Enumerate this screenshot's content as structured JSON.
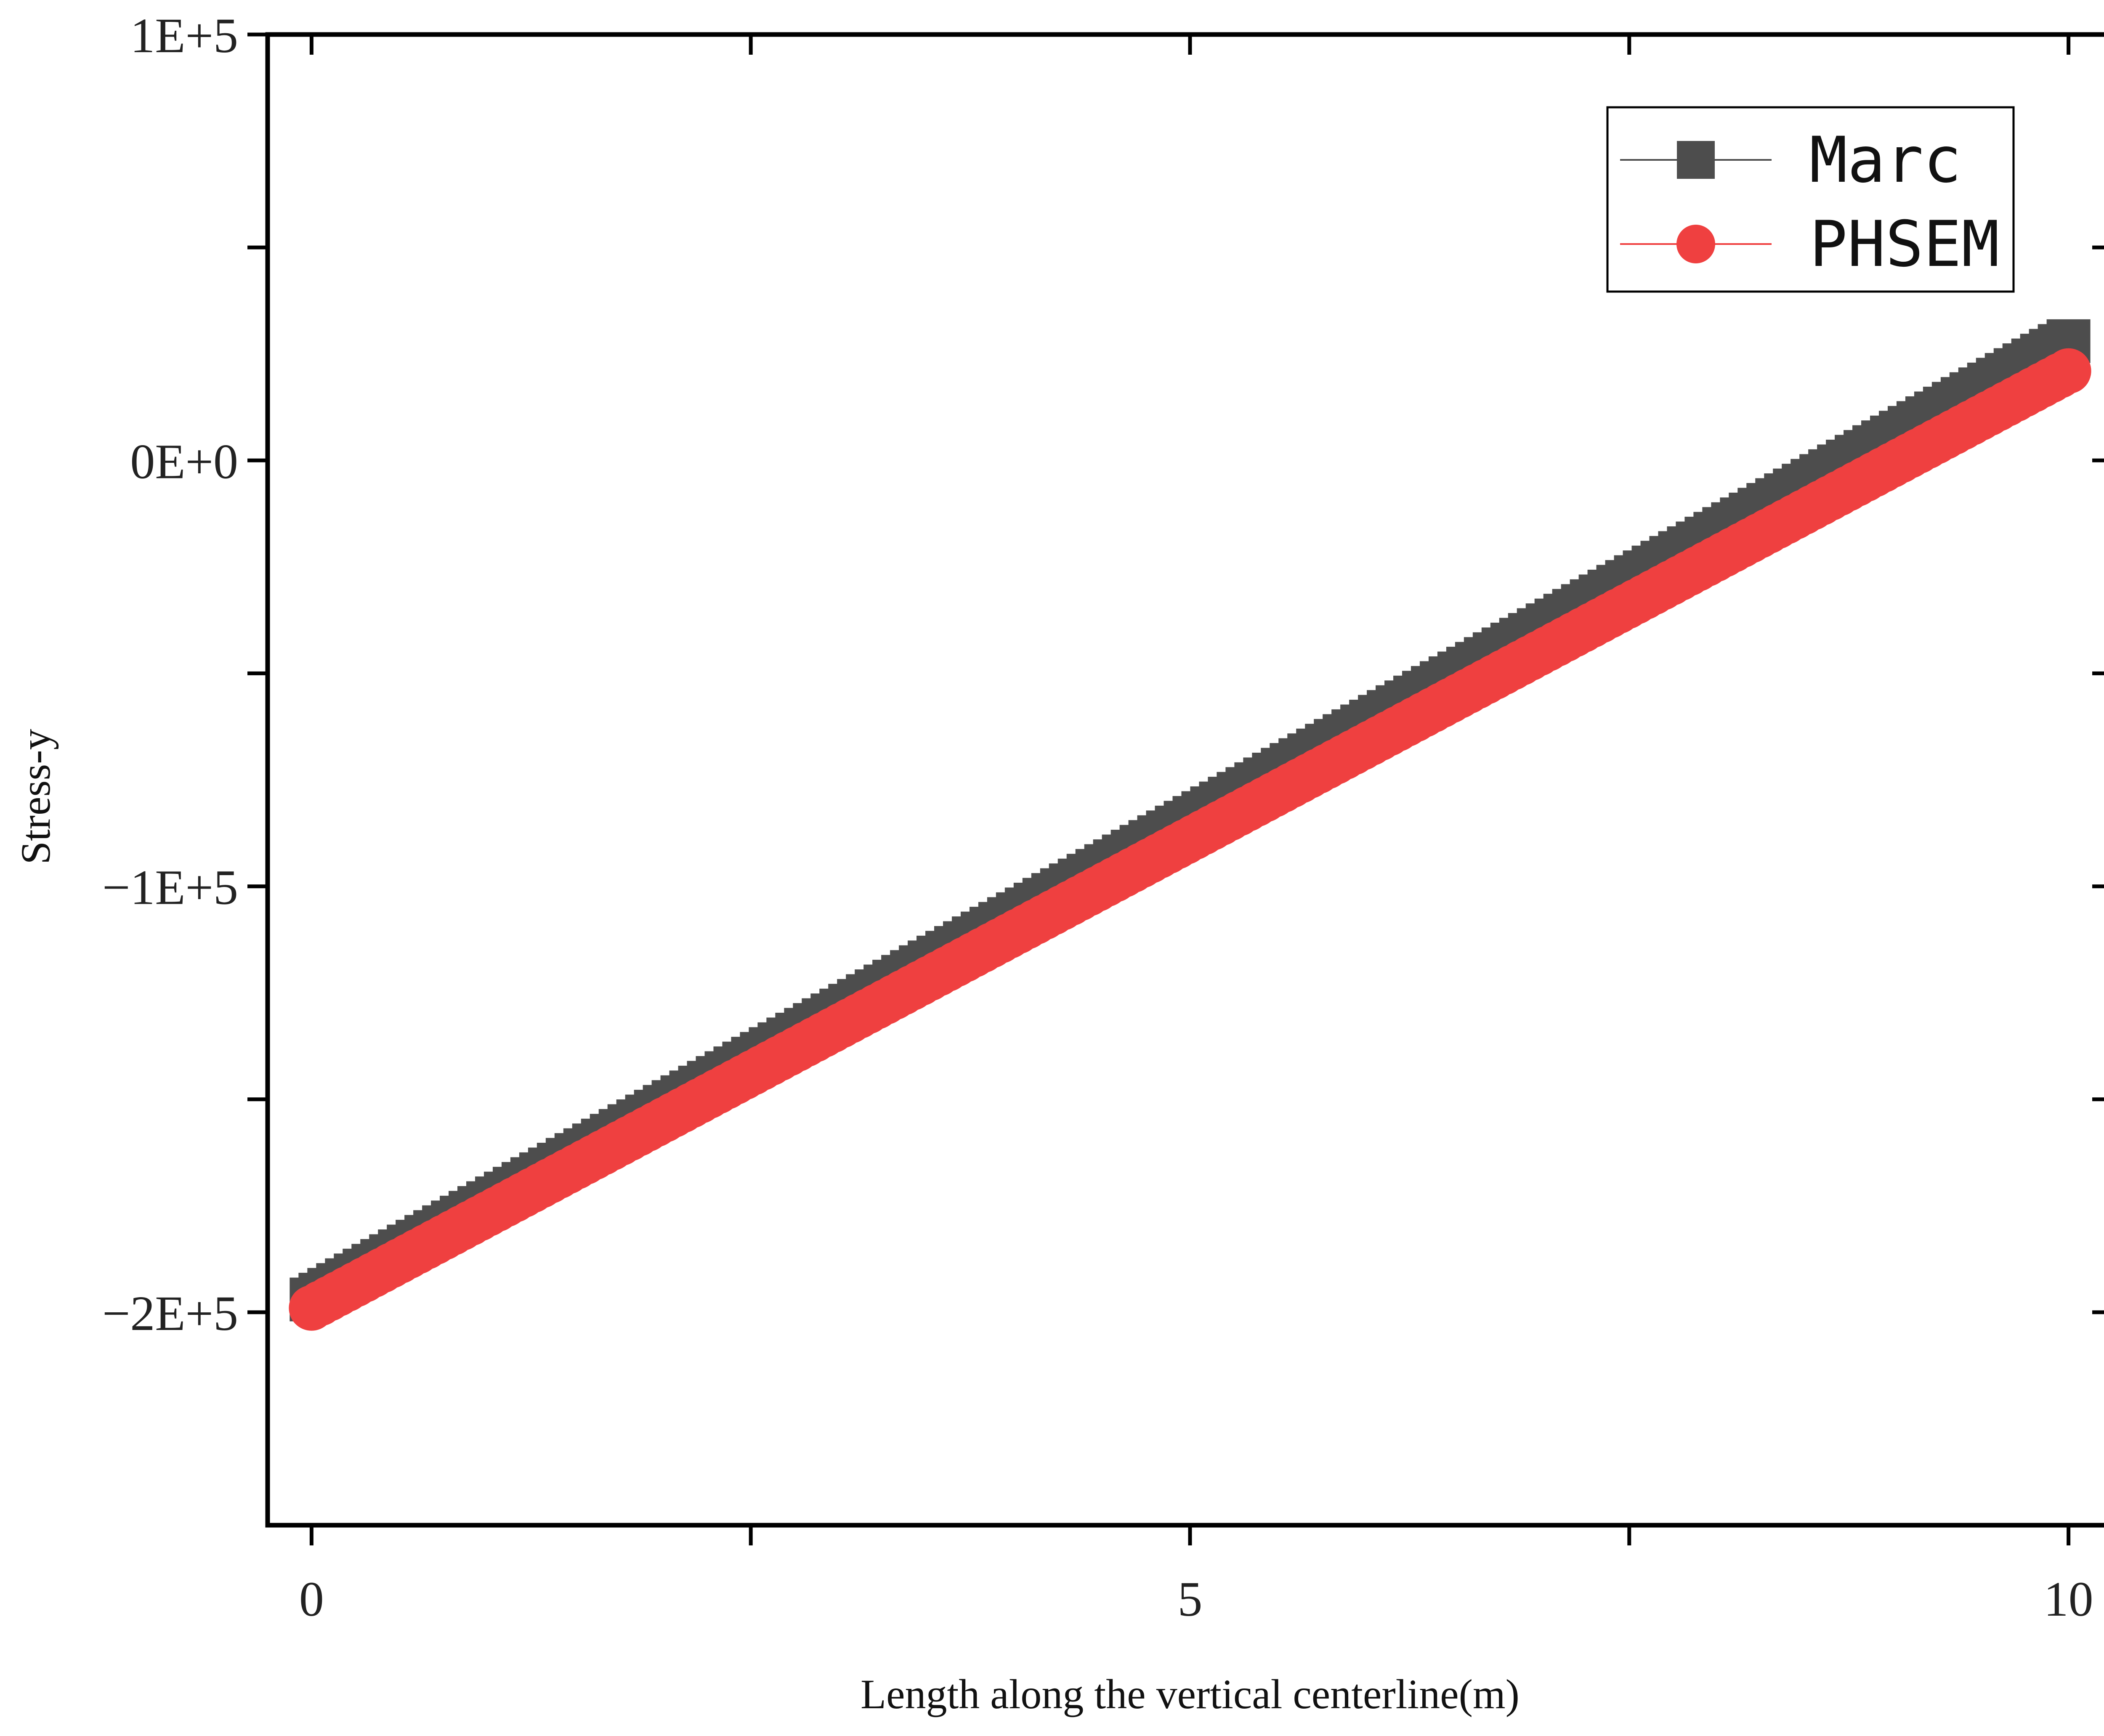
{
  "chart_data": {
    "type": "scatter",
    "xlabel": "Length along the vertical centerline(m)",
    "ylabel": "Stress-y",
    "xlim": [
      -0.25,
      10.25
    ],
    "ylim": [
      -250000,
      100000
    ],
    "x_ticks": [
      {
        "value": 0,
        "label": "0"
      },
      {
        "value": 5,
        "label": "5"
      },
      {
        "value": 10,
        "label": "10"
      }
    ],
    "x_minor_ticks": [
      2.5,
      7.5
    ],
    "y_ticks": [
      {
        "value": 100000,
        "label": "1E+5"
      },
      {
        "value": 0,
        "label": "0E+0"
      },
      {
        "value": -100000,
        "label": "−1E+5"
      },
      {
        "value": -200000,
        "label": "−2E+5"
      }
    ],
    "y_minor_ticks": [
      50000,
      -50000,
      -150000
    ],
    "legend": {
      "position": "top-right"
    },
    "grid": false,
    "series": [
      {
        "name": "Marc",
        "marker": "square",
        "color": "#4d4d4d",
        "x_start": 0,
        "x_end": 10,
        "points": 200,
        "y_start": -197000,
        "y_end": 28000
      },
      {
        "name": "PHSEM",
        "marker": "circle",
        "color": "#ef4040",
        "x_start": 0,
        "x_end": 10,
        "points": 200,
        "y_start": -199000,
        "y_end": 21000
      }
    ]
  }
}
